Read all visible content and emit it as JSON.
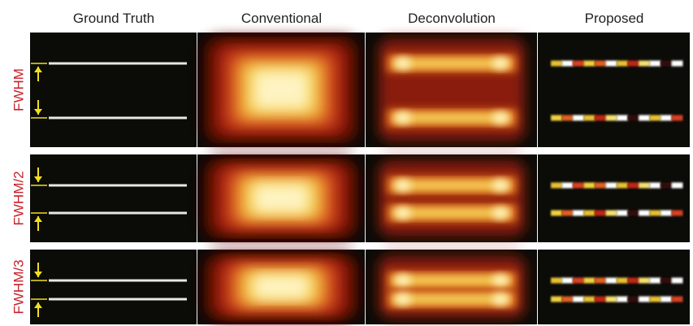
{
  "columns": [
    "Ground Truth",
    "Conventional",
    "Deconvolution",
    "Proposed"
  ],
  "rows": [
    "FWHM",
    "FWHM/2",
    "FWHM/3"
  ]
}
